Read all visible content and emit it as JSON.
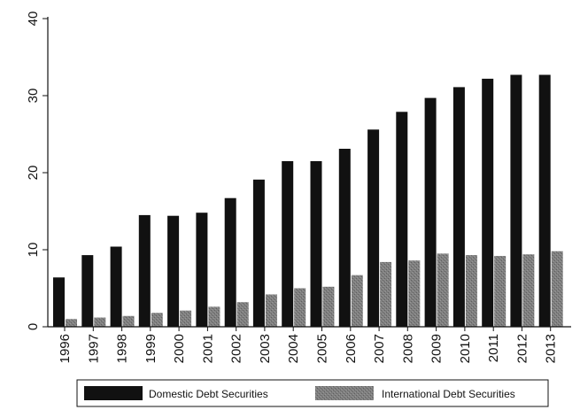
{
  "chart_data": {
    "type": "bar",
    "categories": [
      "1996",
      "1997",
      "1998",
      "1999",
      "2000",
      "2001",
      "2002",
      "2003",
      "2004",
      "2005",
      "2006",
      "2007",
      "2008",
      "2009",
      "2010",
      "2011",
      "2012",
      "2013"
    ],
    "series": [
      {
        "name": "Domestic Debt Securities",
        "color": "#111111",
        "values": [
          6.4,
          9.3,
          10.4,
          14.5,
          14.4,
          14.8,
          16.7,
          19.1,
          21.5,
          21.5,
          23.1,
          25.6,
          27.9,
          29.7,
          31.1,
          32.2,
          32.7,
          32.7
        ]
      },
      {
        "name": "International Debt Securities",
        "color": "#7a7a7a",
        "values": [
          1.0,
          1.2,
          1.4,
          1.8,
          2.1,
          2.6,
          3.2,
          4.2,
          5.0,
          5.2,
          6.7,
          8.4,
          8.6,
          9.5,
          9.3,
          9.2,
          9.4,
          9.8
        ]
      }
    ],
    "yticks": [
      "0",
      "10",
      "20",
      "30",
      "40"
    ],
    "ylim": [
      0,
      40
    ],
    "grid": false,
    "legend_position": "bottom"
  }
}
